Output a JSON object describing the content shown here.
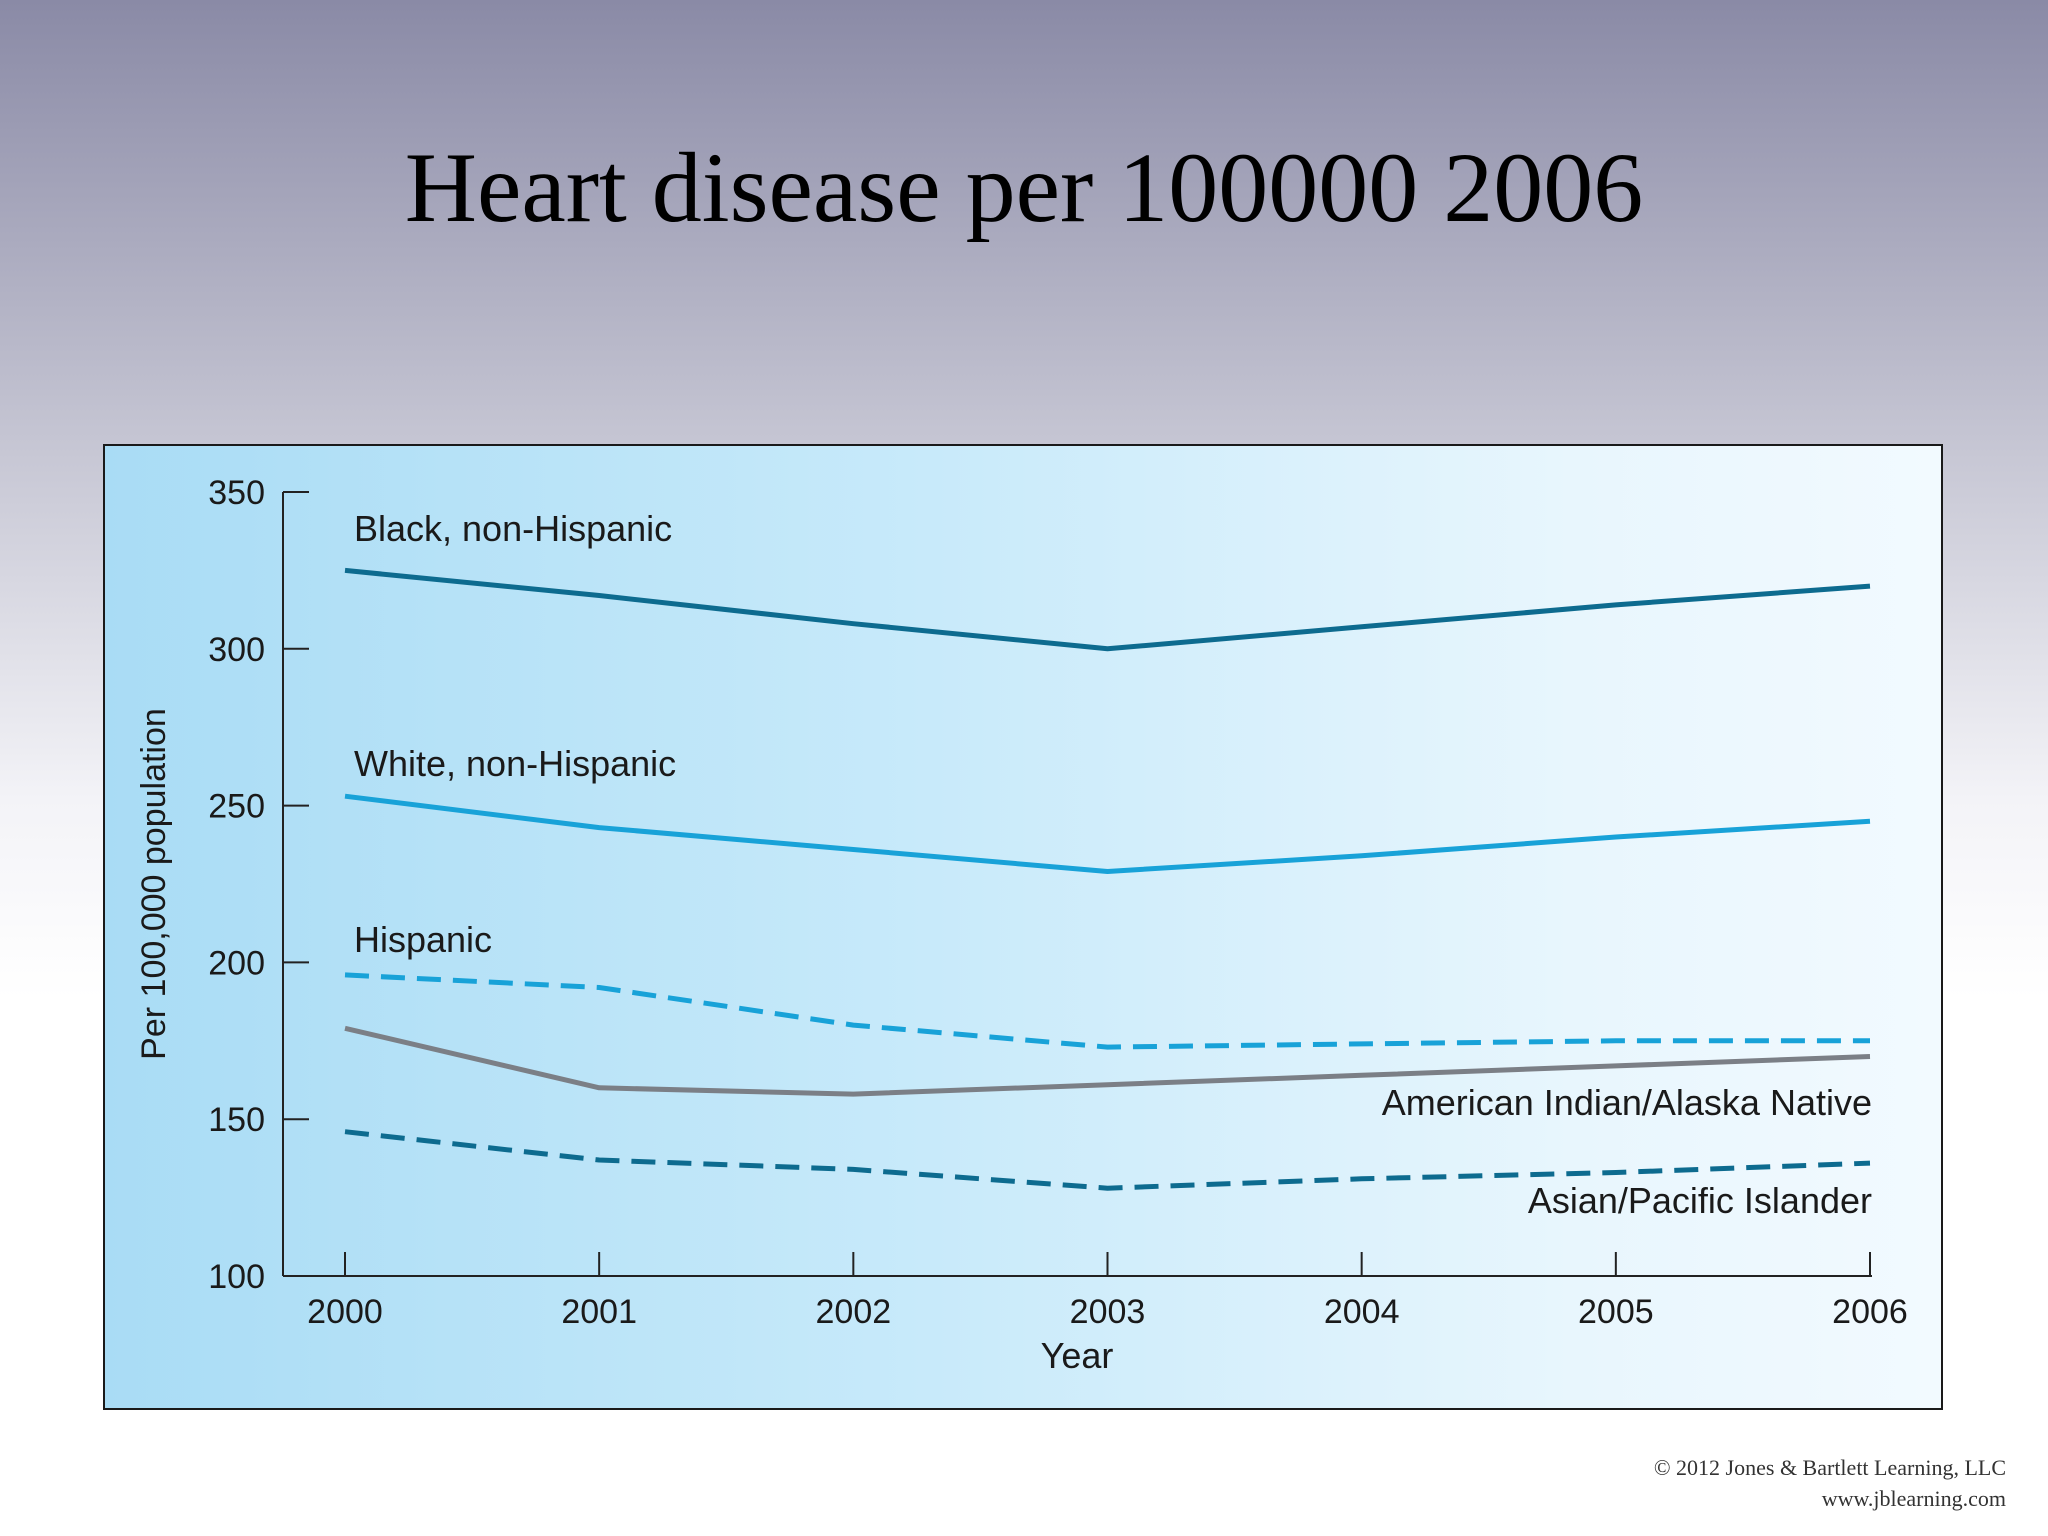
{
  "slide": {
    "title": "Heart disease per 100000 2006",
    "copyright": "© 2012 Jones & Bartlett Learning, LLC",
    "website": "www.jblearning.com"
  },
  "chart_data": {
    "type": "line",
    "x": [
      2000,
      2001,
      2002,
      2003,
      2004,
      2005,
      2006
    ],
    "xlabel": "Year",
    "ylabel": "Per 100,000 population",
    "xticks": [
      "2000",
      "2001",
      "2002",
      "2003",
      "2004",
      "2005",
      "2006"
    ],
    "yticks": [
      "100",
      "150",
      "200",
      "250",
      "300",
      "350"
    ],
    "ylim": [
      100,
      350
    ],
    "grid": false,
    "legend": "inline-labels",
    "series": [
      {
        "name": "Black, non-Hispanic",
        "values": [
          325,
          317,
          308,
          300,
          307,
          314,
          320
        ],
        "color": "#0d6b8f",
        "dash": "solid"
      },
      {
        "name": "White, non-Hispanic",
        "values": [
          253,
          243,
          236,
          229,
          234,
          240,
          245
        ],
        "color": "#18a2d8",
        "dash": "solid"
      },
      {
        "name": "Hispanic",
        "values": [
          196,
          192,
          180,
          173,
          174,
          175,
          175
        ],
        "color": "#18a2d8",
        "dash": "dashed"
      },
      {
        "name": "American Indian/Alaska Native",
        "values": [
          179,
          160,
          158,
          161,
          164,
          167,
          170
        ],
        "color": "#7b7f86",
        "dash": "solid"
      },
      {
        "name": "Asian/Pacific Islander",
        "values": [
          146,
          137,
          134,
          128,
          131,
          133,
          136
        ],
        "color": "#0d6b8f",
        "dash": "dashed"
      }
    ]
  }
}
